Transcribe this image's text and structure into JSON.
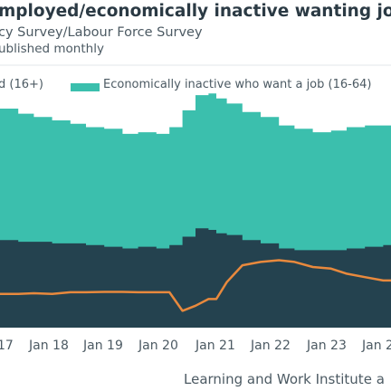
{
  "header": {
    "title": "mployed/economically inactive wanting job",
    "subtitle": "cy Survey/Labour Force Survey",
    "note": "ublished monthly"
  },
  "legend": {
    "item1": "d (16+)",
    "item2": "Economically inactive who want a job (16-64)"
  },
  "source": "Learning and Work Institute a",
  "colors": {
    "teal": "#3bbfad",
    "dark": "#24424f",
    "orange": "#e8893d",
    "text": "#4c5a63"
  },
  "chart_data": {
    "type": "area",
    "x_tick_labels": [
      "17",
      "Jan 18",
      "Jan 19",
      "Jan 20",
      "Jan 21",
      "Jan 22",
      "Jan 23",
      "Jan 2"
    ],
    "x": [
      2016.95,
      2017.3,
      2017.6,
      2017.95,
      2018.3,
      2018.6,
      2018.95,
      2019.3,
      2019.6,
      2019.95,
      2020.2,
      2020.45,
      2020.7,
      2020.95,
      2021.1,
      2021.3,
      2021.6,
      2021.95,
      2022.3,
      2022.6,
      2022.95,
      2023.3,
      2023.6,
      2023.95,
      2024.3,
      2024.45
    ],
    "series": [
      {
        "name": "d (16+)",
        "values": [
          1.6,
          1.55,
          1.55,
          1.5,
          1.5,
          1.45,
          1.4,
          1.35,
          1.4,
          1.35,
          1.45,
          1.7,
          1.95,
          1.9,
          1.8,
          1.75,
          1.6,
          1.5,
          1.35,
          1.3,
          1.3,
          1.3,
          1.35,
          1.4,
          1.45,
          1.45
        ],
        "color": "#24424f"
      },
      {
        "name": "Economically inactive who want a job (16-64)",
        "values": [
          3.9,
          3.8,
          3.7,
          3.65,
          3.55,
          3.5,
          3.5,
          3.4,
          3.4,
          3.4,
          3.5,
          3.75,
          3.95,
          4.05,
          4.0,
          3.9,
          3.8,
          3.75,
          3.65,
          3.6,
          3.5,
          3.55,
          3.6,
          3.6,
          3.55,
          3.6
        ],
        "color": "#3bbfad"
      }
    ],
    "line": {
      "values": [
        0.0,
        0.0,
        0.02,
        0.0,
        0.05,
        0.05,
        0.06,
        0.06,
        0.05,
        0.05,
        0.05,
        -0.5,
        -0.35,
        -0.15,
        -0.15,
        0.35,
        0.85,
        0.95,
        1.0,
        0.95,
        0.8,
        0.75,
        0.6,
        0.5,
        0.4,
        0.4
      ],
      "color": "#e8893d"
    },
    "xlim": [
      2016.95,
      2024.45
    ],
    "ylim": [
      -1.0,
      5.5
    ],
    "grid": false
  }
}
